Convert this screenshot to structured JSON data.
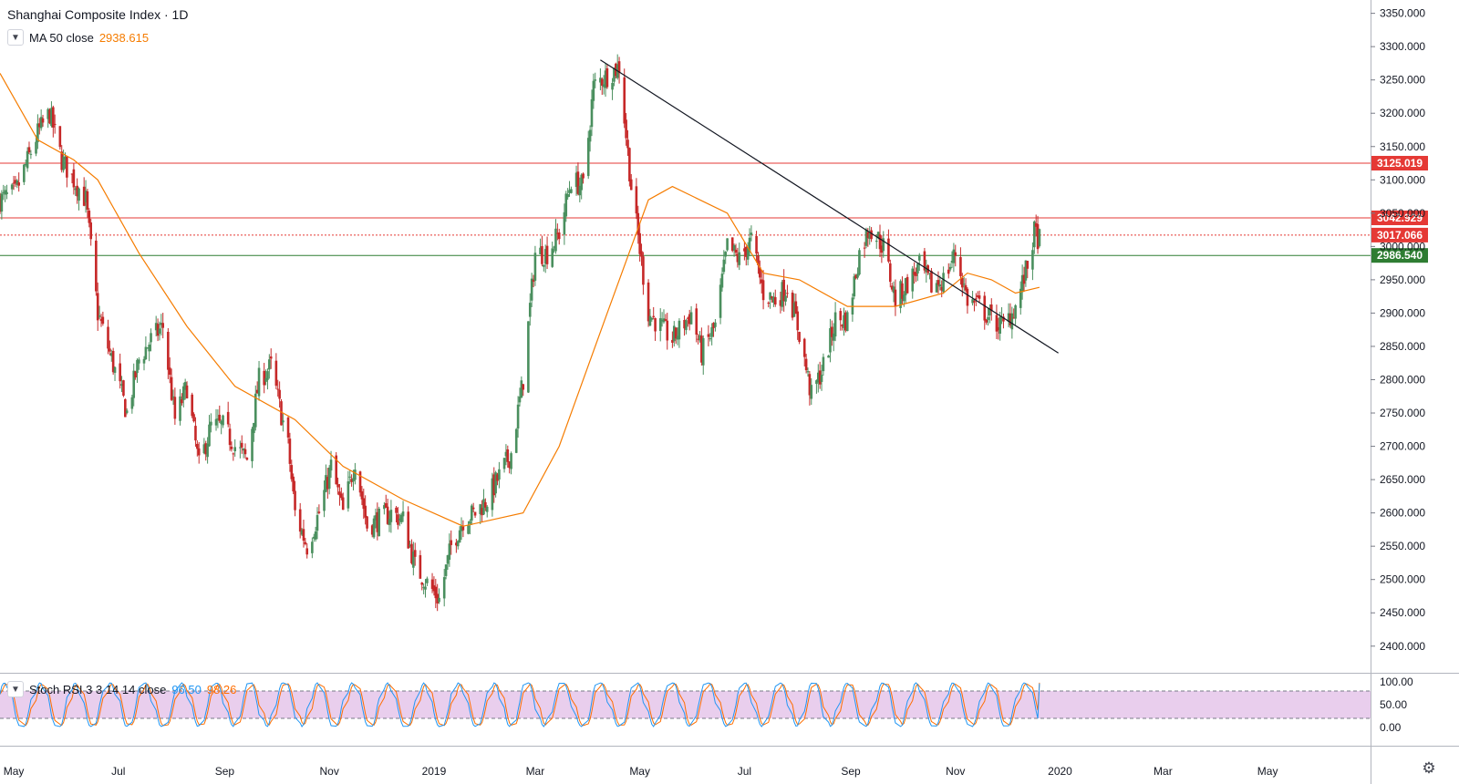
{
  "header": {
    "title": "Shanghai Composite Index · 1D",
    "ma_label": "MA 50 close",
    "ma_value": "2938.615"
  },
  "stoch": {
    "label": "Stoch RSI 3 3 14 14 close",
    "k_value": "96.50",
    "d_value": "98.26"
  },
  "colors": {
    "up": "#4a8f5e",
    "down": "#c62828",
    "ma": "#f57c00",
    "resistance": "#e53935",
    "support": "#2e7d32",
    "trend": "#131722",
    "stoch_k": "#2196f3",
    "stoch_d": "#ff6d00",
    "stoch_band": "#e1bee7"
  },
  "icons": {
    "collapse": "chevron-down-icon",
    "settings": "gear-icon"
  },
  "chart_data": {
    "type": "candlestick",
    "title": "Shanghai Composite Index · 1D",
    "price_axis": {
      "ticks": [
        2400,
        2450,
        2500,
        2550,
        2600,
        2650,
        2700,
        2750,
        2800,
        2850,
        2900,
        2950,
        3000,
        3050,
        3100,
        3150,
        3200,
        3250,
        3300,
        3350
      ],
      "tick_labels": [
        "2400.000",
        "2450.000",
        "2500.000",
        "2550.000",
        "2600.000",
        "2650.000",
        "2700.000",
        "2750.000",
        "2800.000",
        "2850.000",
        "2900.000",
        "2950.000",
        "3000.000",
        "3050.000",
        "3100.000",
        "3150.000",
        "3200.000",
        "3250.000",
        "3300.000",
        "3350.000"
      ],
      "range": [
        2360,
        3370
      ]
    },
    "time_axis": {
      "labels": [
        "May",
        "Jul",
        "Sep",
        "Nov",
        "2019",
        "Mar",
        "May",
        "Jul",
        "Sep",
        "Nov",
        "2020",
        "Mar",
        "May"
      ],
      "dates": [
        "2018-05-01",
        "2018-07-01",
        "2018-09-01",
        "2018-11-01",
        "2019-01-01",
        "2019-03-01",
        "2019-05-01",
        "2019-07-01",
        "2019-09-01",
        "2019-11-01",
        "2020-01-01",
        "2020-03-01",
        "2020-05-01"
      ],
      "range": [
        "2018-04-23",
        "2020-06-30"
      ]
    },
    "horizontal_lines": [
      {
        "value": 3125.019,
        "label": "3125.019",
        "style": "solid",
        "color": "#e53935"
      },
      {
        "value": 3042.929,
        "label": "3042.929",
        "style": "solid",
        "color": "#e53935"
      },
      {
        "value": 3017.066,
        "label": "3017.066",
        "style": "dotted",
        "color": "#e53935"
      },
      {
        "value": 2986.54,
        "label": "2986.540",
        "style": "solid",
        "color": "#2e7d32"
      }
    ],
    "trendline": {
      "start": [
        "2019-04-08",
        3280
      ],
      "end": [
        "2019-12-31",
        2840
      ]
    },
    "price_path": [
      [
        "2018-04-23",
        3070
      ],
      [
        "2018-05-02",
        3080
      ],
      [
        "2018-05-15",
        3170
      ],
      [
        "2018-05-22",
        3200
      ],
      [
        "2018-05-29",
        3130
      ],
      [
        "2018-06-05",
        3100
      ],
      [
        "2018-06-12",
        3070
      ],
      [
        "2018-06-19",
        2900
      ],
      [
        "2018-06-26",
        2840
      ],
      [
        "2018-07-06",
        2750
      ],
      [
        "2018-07-13",
        2830
      ],
      [
        "2018-07-20",
        2860
      ],
      [
        "2018-07-27",
        2880
      ],
      [
        "2018-08-03",
        2740
      ],
      [
        "2018-08-10",
        2790
      ],
      [
        "2018-08-17",
        2670
      ],
      [
        "2018-08-24",
        2730
      ],
      [
        "2018-08-31",
        2730
      ],
      [
        "2018-09-07",
        2700
      ],
      [
        "2018-09-14",
        2680
      ],
      [
        "2018-09-21",
        2800
      ],
      [
        "2018-09-28",
        2820
      ],
      [
        "2018-10-08",
        2700
      ],
      [
        "2018-10-12",
        2600
      ],
      [
        "2018-10-19",
        2550
      ],
      [
        "2018-10-26",
        2600
      ],
      [
        "2018-11-02",
        2670
      ],
      [
        "2018-11-09",
        2600
      ],
      [
        "2018-11-16",
        2680
      ],
      [
        "2018-11-23",
        2580
      ],
      [
        "2018-11-30",
        2590
      ],
      [
        "2018-12-07",
        2600
      ],
      [
        "2018-12-14",
        2590
      ],
      [
        "2018-12-21",
        2520
      ],
      [
        "2019-01-04",
        2470
      ],
      [
        "2019-01-11",
        2550
      ],
      [
        "2019-01-18",
        2590
      ],
      [
        "2019-01-25",
        2600
      ],
      [
        "2019-02-01",
        2620
      ],
      [
        "2019-02-15",
        2690
      ],
      [
        "2019-02-22",
        2800
      ],
      [
        "2019-03-01",
        2990
      ],
      [
        "2019-03-08",
        2990
      ],
      [
        "2019-03-15",
        3020
      ],
      [
        "2019-03-22",
        3100
      ],
      [
        "2019-03-29",
        3090
      ],
      [
        "2019-04-04",
        3240
      ],
      [
        "2019-04-08",
        3250
      ],
      [
        "2019-04-19",
        3270
      ],
      [
        "2019-04-26",
        3090
      ],
      [
        "2019-05-06",
        2900
      ],
      [
        "2019-05-13",
        2880
      ],
      [
        "2019-05-20",
        2860
      ],
      [
        "2019-05-31",
        2900
      ],
      [
        "2019-06-06",
        2840
      ],
      [
        "2019-06-14",
        2880
      ],
      [
        "2019-06-21",
        3000
      ],
      [
        "2019-06-28",
        2980
      ],
      [
        "2019-07-05",
        3010
      ],
      [
        "2019-07-12",
        2930
      ],
      [
        "2019-07-19",
        2920
      ],
      [
        "2019-07-26",
        2940
      ],
      [
        "2019-08-02",
        2870
      ],
      [
        "2019-08-09",
        2775
      ],
      [
        "2019-08-16",
        2820
      ],
      [
        "2019-08-23",
        2890
      ],
      [
        "2019-08-30",
        2890
      ],
      [
        "2019-09-06",
        2990
      ],
      [
        "2019-09-12",
        3030
      ],
      [
        "2019-09-20",
        3000
      ],
      [
        "2019-09-27",
        2920
      ],
      [
        "2019-10-11",
        2970
      ],
      [
        "2019-10-18",
        2940
      ],
      [
        "2019-10-25",
        2950
      ],
      [
        "2019-11-01",
        2990
      ],
      [
        "2019-11-08",
        2920
      ],
      [
        "2019-11-15",
        2910
      ],
      [
        "2019-11-22",
        2890
      ],
      [
        "2019-11-29",
        2880
      ],
      [
        "2019-12-06",
        2910
      ],
      [
        "2019-12-13",
        2970
      ],
      [
        "2019-12-17",
        3020
      ],
      [
        "2019-12-20",
        3010
      ]
    ],
    "ma_path": [
      [
        "2018-04-23",
        3260
      ],
      [
        "2018-05-15",
        3160
      ],
      [
        "2018-06-05",
        3130
      ],
      [
        "2018-06-19",
        3100
      ],
      [
        "2018-07-13",
        2990
      ],
      [
        "2018-08-10",
        2880
      ],
      [
        "2018-09-07",
        2790
      ],
      [
        "2018-10-12",
        2740
      ],
      [
        "2018-11-09",
        2670
      ],
      [
        "2018-12-14",
        2620
      ],
      [
        "2019-01-18",
        2580
      ],
      [
        "2019-02-22",
        2600
      ],
      [
        "2019-03-15",
        2700
      ],
      [
        "2019-04-12",
        2900
      ],
      [
        "2019-05-06",
        3070
      ],
      [
        "2019-05-20",
        3090
      ],
      [
        "2019-06-21",
        3050
      ],
      [
        "2019-07-12",
        2960
      ],
      [
        "2019-08-02",
        2950
      ],
      [
        "2019-08-30",
        2910
      ],
      [
        "2019-09-27",
        2910
      ],
      [
        "2019-10-25",
        2930
      ],
      [
        "2019-11-08",
        2960
      ],
      [
        "2019-11-22",
        2950
      ],
      [
        "2019-12-06",
        2930
      ],
      [
        "2019-12-20",
        2938.615
      ]
    ],
    "stoch_axis": {
      "ticks": [
        0,
        50,
        100
      ],
      "tick_labels": [
        "0.00",
        "50.00",
        "100.00"
      ],
      "upper_band": 80,
      "lower_band": 20
    },
    "stoch_k_last": 96.5,
    "stoch_d_last": 98.26
  }
}
